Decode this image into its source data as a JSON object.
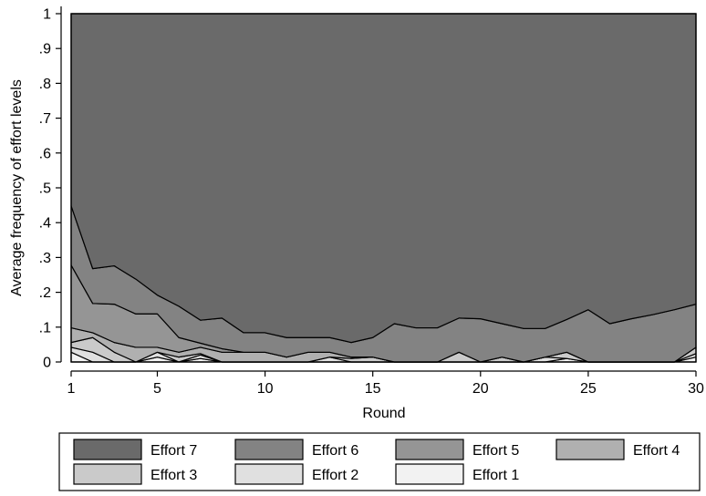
{
  "chart_data": {
    "type": "area",
    "stacked": true,
    "xlabel": "Round",
    "ylabel": "Average frequency of effort levels",
    "xlim": [
      1,
      30
    ],
    "ylim": [
      0,
      1
    ],
    "grid": false,
    "legend_position": "bottom",
    "x_ticks": [
      1,
      5,
      10,
      15,
      20,
      25,
      30
    ],
    "x_tick_labels": [
      "1",
      "5",
      "10",
      "15",
      "20",
      "25",
      "30"
    ],
    "y_ticks": [
      0,
      0.1,
      0.2,
      0.3,
      0.4,
      0.5,
      0.6,
      0.7,
      0.8,
      0.9,
      1
    ],
    "y_tick_labels": [
      "0",
      ".1",
      ".2",
      ".3",
      ".4",
      ".5",
      ".6",
      ".7",
      ".8",
      ".9",
      "1"
    ],
    "x": [
      1,
      2,
      3,
      4,
      5,
      6,
      7,
      8,
      9,
      10,
      11,
      12,
      13,
      14,
      15,
      16,
      17,
      18,
      19,
      20,
      21,
      22,
      23,
      24,
      25,
      26,
      27,
      28,
      29,
      30
    ],
    "series": [
      {
        "name": "Effort 1",
        "color": "#f2f2f2",
        "values": [
          0.028,
          0,
          0,
          0,
          0.014,
          0,
          0.01,
          0,
          0,
          0,
          0,
          0,
          0,
          0,
          0,
          0,
          0,
          0,
          0,
          0,
          0,
          0,
          0,
          0.01,
          0,
          0,
          0,
          0,
          0,
          0.014
        ]
      },
      {
        "name": "Effort 2",
        "color": "#e0e0e0",
        "values": [
          0.014,
          0.028,
          0,
          0,
          0.014,
          0,
          0.01,
          0,
          0,
          0,
          0,
          0,
          0.014,
          0,
          0,
          0,
          0,
          0,
          0,
          0,
          0,
          0,
          0.014,
          0,
          0,
          0,
          0,
          0,
          0,
          0.01
        ]
      },
      {
        "name": "Effort 3",
        "color": "#cacaca",
        "values": [
          0.014,
          0.042,
          0.028,
          0,
          0,
          0.014,
          0.004,
          0,
          0,
          0,
          0,
          0,
          0,
          0.01,
          0.014,
          0,
          0,
          0,
          0.028,
          0,
          0.014,
          0,
          0,
          0.018,
          0,
          0,
          0,
          0,
          0,
          0.018
        ]
      },
      {
        "name": "Effort 4",
        "color": "#b0b0b0",
        "values": [
          0.042,
          0.014,
          0.028,
          0.042,
          0.014,
          0.014,
          0.018,
          0.028,
          0.028,
          0.028,
          0.014,
          0.028,
          0.014,
          0.004,
          0,
          0,
          0,
          0,
          0,
          0,
          0,
          0,
          0,
          0,
          0,
          0,
          0,
          0,
          0,
          0
        ]
      },
      {
        "name": "Effort 5",
        "color": "#959595",
        "values": [
          0.18,
          0.084,
          0.11,
          0.096,
          0.096,
          0.042,
          0.012,
          0.01,
          0,
          0,
          0,
          0,
          0,
          0,
          0,
          0,
          0,
          0,
          0,
          0,
          0,
          0,
          0,
          0,
          0,
          0,
          0,
          0,
          0,
          0
        ]
      },
      {
        "name": "Effort 6",
        "color": "#838383",
        "values": [
          0.17,
          0.1,
          0.11,
          0.1,
          0.054,
          0.09,
          0.066,
          0.088,
          0.056,
          0.056,
          0.056,
          0.042,
          0.042,
          0.042,
          0.056,
          0.11,
          0.098,
          0.098,
          0.098,
          0.124,
          0.096,
          0.096,
          0.082,
          0.094,
          0.15,
          0.11,
          0.124,
          0.136,
          0.15,
          0.124
        ]
      },
      {
        "name": "Effort 7",
        "color": "#6a6a6a",
        "values": [
          0.552,
          0.732,
          0.724,
          0.762,
          0.808,
          0.84,
          0.88,
          0.874,
          0.916,
          0.916,
          0.93,
          0.93,
          0.93,
          0.944,
          0.93,
          0.89,
          0.902,
          0.902,
          0.874,
          0.876,
          0.89,
          0.904,
          0.904,
          0.878,
          0.85,
          0.89,
          0.876,
          0.864,
          0.85,
          0.834
        ]
      }
    ],
    "legend_order": [
      "Effort 7",
      "Effort 6",
      "Effort 5",
      "Effort 4",
      "Effort 3",
      "Effort 2",
      "Effort 1"
    ]
  }
}
